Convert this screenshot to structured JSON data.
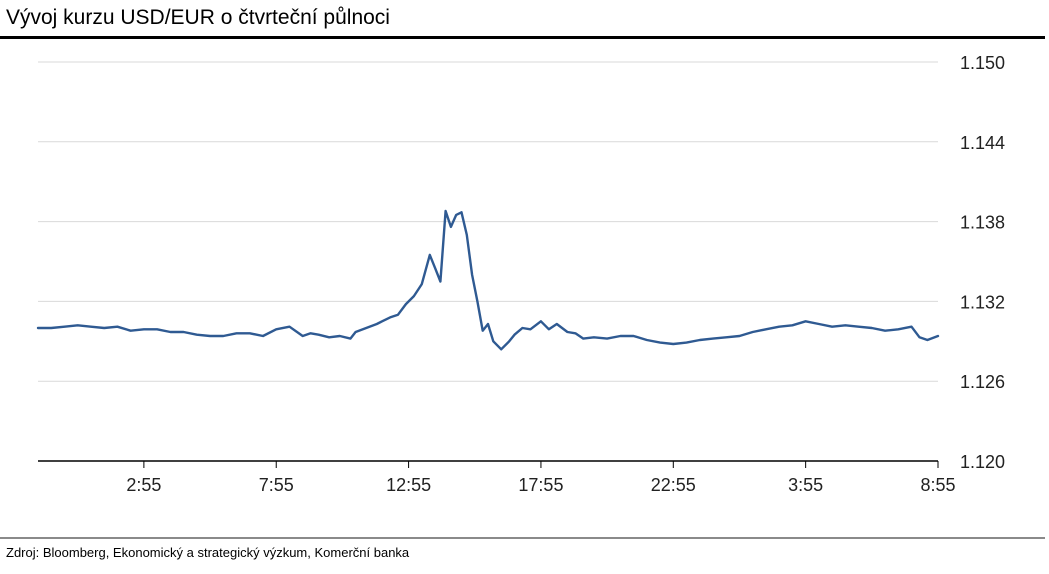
{
  "title": "Vývoj kurzu USD/EUR o čtvrteční půlnoci",
  "source": "Zdroj: Bloomberg, Ekonomický a strategický výzkum, Komerční banka",
  "colors": {
    "line": "#2f5a92",
    "grid": "#d9d9d9",
    "axis": "#000000",
    "rule": "#000000"
  },
  "chart_data": {
    "type": "line",
    "title": "Vývoj kurzu USD/EUR o čtvrteční půlnoci",
    "xlabel": "",
    "ylabel": "",
    "ylim": [
      1.12,
      1.15
    ],
    "y_ticks": [
      "1.150",
      "1.144",
      "1.138",
      "1.132",
      "1.126",
      "1.120"
    ],
    "y_axis_side": "right",
    "x_ticks": [
      "2:55",
      "7:55",
      "12:55",
      "17:55",
      "22:55",
      "3:55",
      "8:55"
    ],
    "x_tick_index": [
      4,
      9,
      14,
      19,
      24,
      29,
      34
    ],
    "x_domain": [
      0,
      34
    ],
    "grid": true,
    "legend": "none",
    "series": [
      {
        "x": [
          0,
          0.5,
          1.0,
          1.5,
          2.0,
          2.5,
          3.0,
          3.5,
          4.0,
          4.5,
          5.0,
          5.5,
          6.0,
          6.5,
          7.0,
          7.5,
          8.0,
          8.5,
          9.0,
          9.5,
          10.0,
          10.3,
          10.6,
          11.0,
          11.4,
          11.8,
          12.0,
          12.4,
          12.8,
          13.0,
          13.3,
          13.6,
          13.9,
          14.2,
          14.5,
          14.8,
          15.0,
          15.2,
          15.4,
          15.6,
          15.8,
          16.0,
          16.2,
          16.4,
          16.6,
          16.8,
          17.0,
          17.2,
          17.5,
          17.8,
          18.0,
          18.3,
          18.6,
          19.0,
          19.3,
          19.6,
          20.0,
          20.3,
          20.6,
          21.0,
          21.5,
          22.0,
          22.5,
          23.0,
          23.5,
          24.0,
          24.5,
          25.0,
          25.5,
          26.0,
          26.5,
          27.0,
          27.5,
          28.0,
          28.5,
          29.0,
          29.5,
          30.0,
          30.5,
          31.0,
          31.5,
          32.0,
          32.5,
          33.0,
          33.3,
          33.6,
          34.0
        ],
        "y": [
          1.13,
          1.13,
          1.1301,
          1.1302,
          1.1301,
          1.13,
          1.1301,
          1.1298,
          1.1299,
          1.1299,
          1.1297,
          1.1297,
          1.1295,
          1.1294,
          1.1294,
          1.1296,
          1.1296,
          1.1294,
          1.1299,
          1.1301,
          1.1294,
          1.1296,
          1.1295,
          1.1293,
          1.1294,
          1.1292,
          1.1297,
          1.13,
          1.1303,
          1.1305,
          1.1308,
          1.131,
          1.1318,
          1.1324,
          1.1333,
          1.1355,
          1.1345,
          1.1335,
          1.1388,
          1.1376,
          1.1385,
          1.1387,
          1.137,
          1.134,
          1.132,
          1.1298,
          1.1303,
          1.129,
          1.1284,
          1.129,
          1.1295,
          1.13,
          1.1299,
          1.1305,
          1.1299,
          1.1303,
          1.1297,
          1.1296,
          1.1292,
          1.1293,
          1.1292,
          1.1294,
          1.1294,
          1.1291,
          1.1289,
          1.1288,
          1.1289,
          1.1291,
          1.1292,
          1.1293,
          1.1294,
          1.1297,
          1.1299,
          1.1301,
          1.1302,
          1.1305,
          1.1303,
          1.1301,
          1.1302,
          1.1301,
          1.13,
          1.1298,
          1.1299,
          1.1301,
          1.1293,
          1.1291,
          1.1294
        ]
      }
    ]
  }
}
